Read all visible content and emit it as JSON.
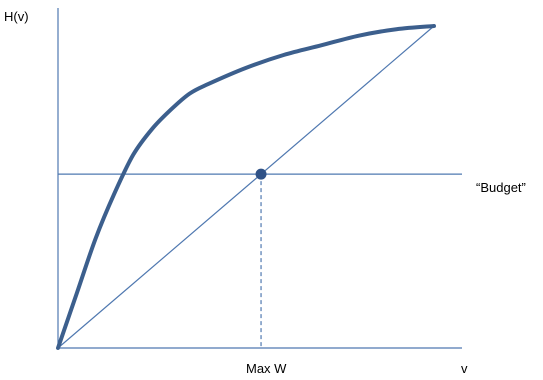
{
  "chart_data": {
    "type": "line",
    "title": "",
    "ylabel": "H(v)",
    "xlabel": "v",
    "xlim": [
      0,
      1
    ],
    "ylim": [
      0,
      1
    ],
    "grid": false,
    "series": [
      {
        "name": "",
        "style": "curve",
        "x": [
          0,
          0.05,
          0.1,
          0.15,
          0.2,
          0.25,
          0.3,
          0.35,
          0.4,
          0.5,
          0.6,
          0.7,
          0.8,
          0.9,
          1.0
        ],
        "y": [
          0,
          0.17,
          0.34,
          0.48,
          0.6,
          0.68,
          0.74,
          0.79,
          0.82,
          0.87,
          0.91,
          0.94,
          0.97,
          0.99,
          1.0
        ]
      },
      {
        "name": "",
        "style": "diagonal",
        "x": [
          0,
          1
        ],
        "y": [
          0,
          1
        ]
      }
    ],
    "budget": {
      "label": "“Budget”",
      "y": 0.54
    },
    "optimum": {
      "label": "Max W",
      "x": 0.54,
      "y": 0.54
    }
  },
  "colors": {
    "curve": "#3c5f8d",
    "lines": "#4f78b0",
    "point": "#2f5287"
  }
}
